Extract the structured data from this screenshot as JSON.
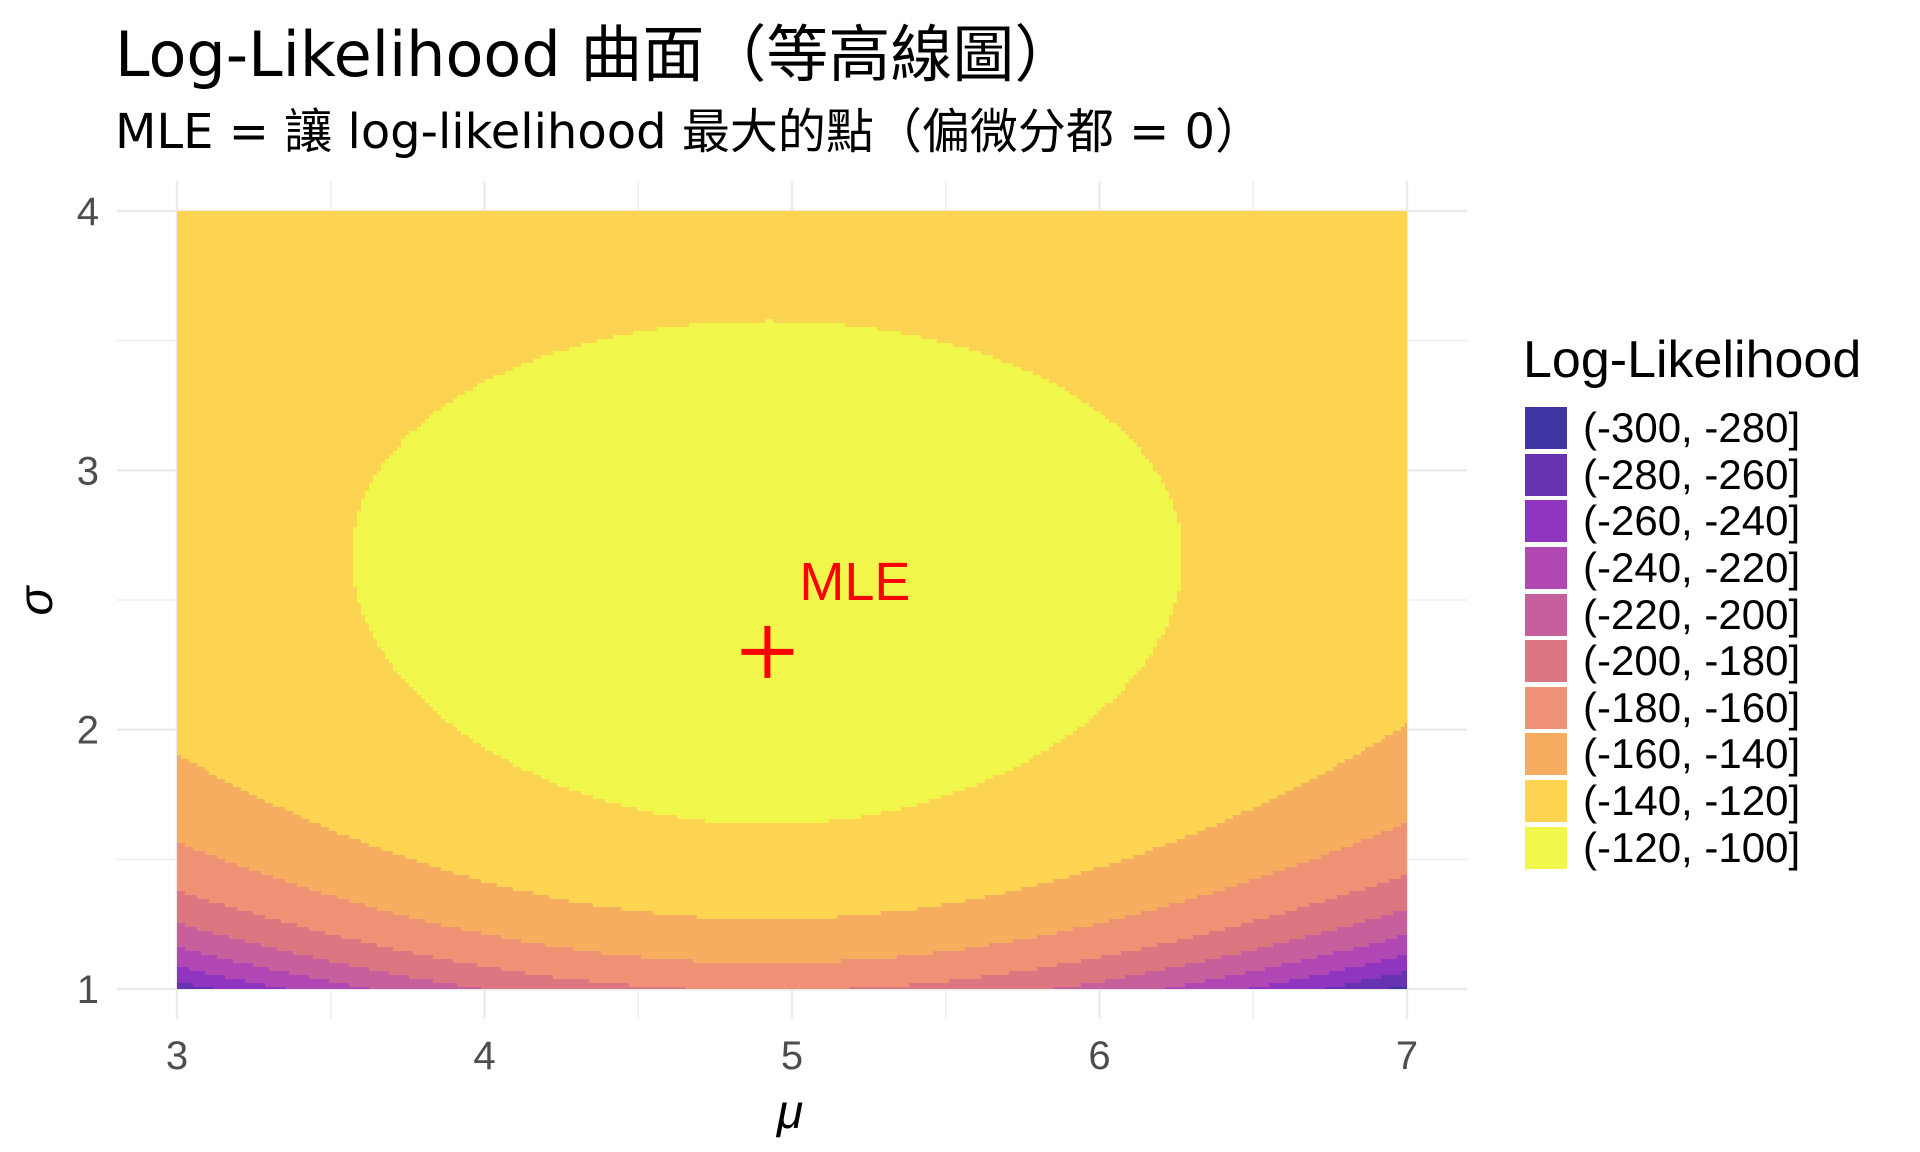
{
  "title": "Log-Likelihood 曲面（等高線圖）",
  "subtitle": "MLE = 讓 log-likelihood 最大的點（偏微分都 = 0）",
  "chart_data": {
    "type": "contour",
    "title": "Log-Likelihood 曲面（等高線圖）",
    "subtitle": "MLE = 讓 log-likelihood 最大的點（偏微分都 = 0）",
    "xlabel": "μ",
    "ylabel": "σ",
    "xlim": [
      3,
      7
    ],
    "ylim": [
      1,
      4
    ],
    "x_ticks": [
      "3",
      "4",
      "5",
      "6",
      "7"
    ],
    "y_ticks": [
      "1",
      "2",
      "3",
      "4"
    ],
    "grid": true,
    "legend_title": "Log-Likelihood",
    "legend_position": "right",
    "levels": [
      {
        "label": "(-300, -280]",
        "min": -300,
        "max": -280,
        "color": "#3E37A3"
      },
      {
        "label": "(-280, -260]",
        "min": -280,
        "max": -260,
        "color": "#6833B2"
      },
      {
        "label": "(-260, -240]",
        "min": -260,
        "max": -240,
        "color": "#8F35C0"
      },
      {
        "label": "(-240, -220]",
        "min": -240,
        "max": -220,
        "color": "#B047B2"
      },
      {
        "label": "(-220, -200]",
        "min": -220,
        "max": -200,
        "color": "#C65F9B"
      },
      {
        "label": "(-200, -180]",
        "min": -200,
        "max": -180,
        "color": "#DC7782"
      },
      {
        "label": "(-180, -160]",
        "min": -180,
        "max": -160,
        "color": "#EE9174"
      },
      {
        "label": "(-160, -140]",
        "min": -160,
        "max": -140,
        "color": "#F7AD60"
      },
      {
        "label": "(-140, -120]",
        "min": -140,
        "max": -120,
        "color": "#FDD352"
      },
      {
        "label": "(-120, -100]",
        "min": -120,
        "max": -100,
        "color": "#F0F74A"
      }
    ],
    "surface": {
      "n": 50,
      "mean_mu": 4.92,
      "sigma_hat": 2.3
    },
    "annotation": {
      "text": "MLE",
      "x": 4.92,
      "y": 2.3,
      "color": "#FF0000"
    }
  }
}
